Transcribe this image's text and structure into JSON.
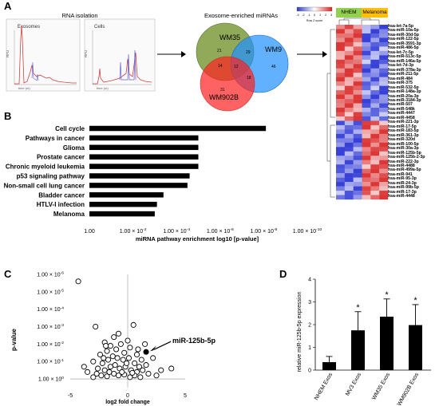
{
  "panels": {
    "A": {
      "letter": "A",
      "rna_title": "RNA isolation",
      "exo_label": "Exosomes",
      "cells_label": "Cells",
      "trace_ylabel": "RFU",
      "trace_xlabel": "time (nt)",
      "venn": {
        "title": "Exosome-enriched miRNAs",
        "sets": [
          "WM35",
          "WM9",
          "WM902B"
        ],
        "regions": {
          "wm35_only": "21",
          "wm9_only": "46",
          "wm902b_only": "31",
          "wm35_wm9": "29",
          "wm35_wm902b": "14",
          "wm9_wm902b": "18",
          "all_three": "12"
        }
      },
      "heatmap": {
        "colorkey_title": "Row Z score",
        "colorkey_ticks": [
          "-3",
          "-2",
          "-1",
          "0",
          "1",
          "2",
          "3"
        ],
        "groups": [
          "NHEM",
          "Melanoma"
        ],
        "group_colors": [
          "#92d050",
          "#ffc000"
        ],
        "mirnas": [
          "hsa-let-7a-5p",
          "hsa-miR-10a-5p",
          "hsa-miR-30d-5p",
          "hsa-miR-122-5p",
          "hsa-miR-3591-3p",
          "hsa-miR-486-5p",
          "hsa-let-7c-5p",
          "hsa-miR-513c-5p",
          "hsa-miR-146a-5p",
          "hsa-let-7d-3p",
          "hsa-miR-378a-3p",
          "hsa-miR-211-5p",
          "hsa-miR-484",
          "hsa-miR-375",
          "hsa-miR-532-5p",
          "hsa-miR-148a-3p",
          "hsa-miR-20a-3p",
          "hsa-miR-3184-3p",
          "hsa-miR-507",
          "hsa-miR-548k",
          "hsa-miR-4447",
          "hsa-miR-4458",
          "hsa-miR-221-3p",
          "hsa-miR-17-5p",
          "hsa-miR-183-5p",
          "hsa-miR-361-3p",
          "hsa-miR-320d",
          "hsa-miR-100-5p",
          "hsa-miR-30a-3p",
          "hsa-miR-125b-5p",
          "hsa-miR-125b-2-3p",
          "hsa-miR-222-3p",
          "hsa-miR-4488",
          "hsa-miR-499a-5p",
          "hsa-miR-941",
          "hsa-miR-95-3p",
          "hsa-miR-24-3p",
          "hsa-miR-99b-5p",
          "hsa-miR-17-3p",
          "hsa-miR-4448"
        ]
      }
    },
    "B": {
      "letter": "B",
      "chart_data": {
        "type": "bar",
        "orientation": "horizontal",
        "categories": [
          "Cell cycle",
          "Pathways in cancer",
          "Glioma",
          "Prostate cancer",
          "Chronic myeloid leukemia",
          "p53 signaling pathway",
          "Non-small cell lung cancer",
          "Bladder cancer",
          "HTLV-I infection",
          "Melanoma"
        ],
        "values_neg_log10_p": [
          8.1,
          5.0,
          5.0,
          5.0,
          5.0,
          4.6,
          4.5,
          3.4,
          3.1,
          3.0
        ],
        "xlabel": "miRNA pathway enrichment log10 [p-value]",
        "xticks": [
          {
            "base": "1.00",
            "exp": ""
          },
          {
            "base": "1.00 × 10",
            "exp": "-2"
          },
          {
            "base": "1.00 × 10",
            "exp": "-4"
          },
          {
            "base": "1.00 × 10",
            "exp": "-6"
          },
          {
            "base": "1.00 × 10",
            "exp": "-8"
          },
          {
            "base": "1.00 × 10",
            "exp": "-10"
          }
        ],
        "xlim": [
          0,
          10
        ]
      }
    },
    "C": {
      "letter": "C",
      "chart_data": {
        "type": "scatter",
        "xlabel": "log2 fold change",
        "ylabel": "p-value",
        "xticks": [
          "-5",
          "0",
          "5"
        ],
        "yticks": [
          {
            "base": "1.00 × 10",
            "exp": "-6"
          },
          {
            "base": "1.00 × 10",
            "exp": "-5"
          },
          {
            "base": "1.00 × 10",
            "exp": "-4"
          },
          {
            "base": "1.00 × 10",
            "exp": "-3"
          },
          {
            "base": "1.00 × 10",
            "exp": "-2"
          },
          {
            "base": "1.00 × 10",
            "exp": "-1"
          },
          {
            "base": "1.00 × 10",
            "exp": "0"
          }
        ],
        "xlim": [
          -5,
          5
        ],
        "ylim_neg_log10": [
          -0.5,
          6
        ],
        "highlight": {
          "label": "miR-125b-5p",
          "x": 1.6,
          "y": 1.55
        },
        "points": [
          [
            -4.3,
            5.6
          ],
          [
            -2.8,
            3.0
          ],
          [
            -1.2,
            2.4
          ],
          [
            -2.0,
            2.1
          ],
          [
            0.5,
            3.1
          ],
          [
            2.2,
            1.2
          ],
          [
            3.8,
            0.6
          ],
          [
            -3.0,
            1.0
          ],
          [
            -2.4,
            1.4
          ],
          [
            -1.8,
            1.6
          ],
          [
            -1.5,
            1.9
          ],
          [
            -1.0,
            1.7
          ],
          [
            -0.6,
            2.0
          ],
          [
            -0.3,
            1.5
          ],
          [
            0.2,
            1.8
          ],
          [
            0.8,
            1.4
          ],
          [
            1.2,
            1.1
          ],
          [
            -2.2,
            0.9
          ],
          [
            -1.7,
            1.1
          ],
          [
            -1.3,
            1.3
          ],
          [
            -0.9,
            1.2
          ],
          [
            -0.4,
            1.1
          ],
          [
            0.1,
            1.2
          ],
          [
            0.6,
            0.9
          ],
          [
            1.0,
            0.7
          ],
          [
            -3.5,
            0.4
          ],
          [
            -2.6,
            0.6
          ],
          [
            -2.0,
            0.5
          ],
          [
            -1.5,
            0.7
          ],
          [
            -1.1,
            0.8
          ],
          [
            -0.7,
            0.6
          ],
          [
            -0.2,
            0.7
          ],
          [
            0.3,
            0.5
          ],
          [
            0.8,
            0.4
          ],
          [
            1.3,
            0.5
          ],
          [
            1.8,
            0.3
          ],
          [
            2.5,
            0.2
          ],
          [
            -3.0,
            0.1
          ],
          [
            -2.3,
            0.2
          ],
          [
            -1.8,
            0.15
          ],
          [
            -1.2,
            0.3
          ],
          [
            -0.8,
            0.2
          ],
          [
            -0.3,
            0.25
          ],
          [
            0.2,
            0.1
          ],
          [
            0.6,
            0.2
          ],
          [
            1.1,
            0.1
          ],
          [
            -1.6,
            0.4
          ],
          [
            -0.5,
            0.4
          ],
          [
            0.4,
            0.35
          ],
          [
            -2.7,
            0.3
          ],
          [
            1.6,
            0.8
          ],
          [
            -0.1,
            0.9
          ],
          [
            2.9,
            0.5
          ],
          [
            -3.8,
            0.7
          ],
          [
            -1.9,
            1.9
          ],
          [
            0.9,
            1.7
          ],
          [
            -0.8,
            2.6
          ],
          [
            0.0,
            2.2
          ],
          [
            1.5,
            2.0
          ],
          [
            -2.1,
            1.2
          ]
        ]
      }
    },
    "D": {
      "letter": "D",
      "chart_data": {
        "type": "bar",
        "categories": [
          "NHEM Exos",
          "MV3 Exos",
          "WM35 Exos",
          "WM902B Exos"
        ],
        "values": [
          0.35,
          1.75,
          2.35,
          1.98
        ],
        "errors": [
          0.25,
          0.82,
          0.78,
          0.9
        ],
        "significance": [
          "",
          "*",
          "*",
          "*"
        ],
        "ylabel": "relative miR-125b-5p expression",
        "yticks": [
          "0",
          "1",
          "2",
          "3",
          "4"
        ],
        "ylim": [
          0,
          4
        ]
      }
    }
  }
}
